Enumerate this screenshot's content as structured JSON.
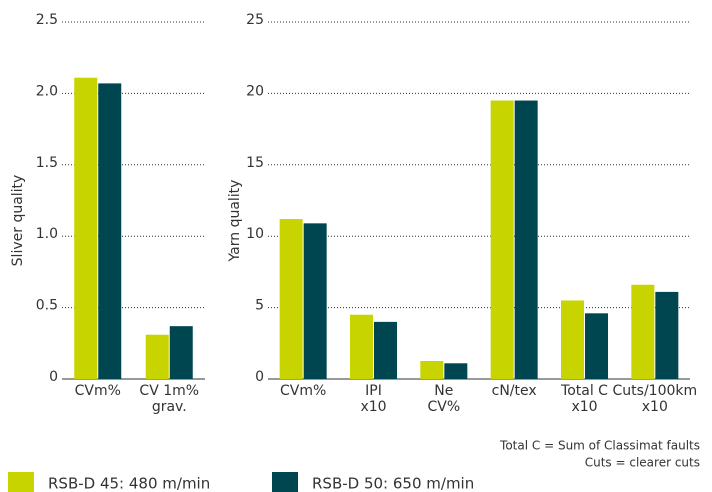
{
  "chart_data": [
    {
      "type": "bar",
      "ylabel": "Sliver quality",
      "categories": [
        "CVm%",
        "CV 1m%\ngrav."
      ],
      "series": [
        {
          "name": "RSB-D 45: 480 m/min",
          "color": "#c8d400",
          "values": [
            2.11,
            0.31
          ]
        },
        {
          "name": "RSB-D 50: 650 m/min",
          "color": "#004650",
          "values": [
            2.07,
            0.37
          ]
        }
      ],
      "ylim": [
        0,
        2.5
      ],
      "yticks": [
        0,
        0.5,
        {
          "value": 1,
          "label": "1.0"
        },
        1.5,
        {
          "value": 2,
          "label": "2.0"
        },
        2.5
      ],
      "grid": true
    },
    {
      "type": "bar",
      "ylabel": "Yarn quality",
      "categories": [
        "CVm%",
        "IPI\nx10",
        "Ne\nCV%",
        "cN/tex",
        "Total C\nx10",
        "Cuts/100km\nx10"
      ],
      "series": [
        {
          "color": "#c8d400",
          "values": [
            11.2,
            4.5,
            1.26,
            19.5,
            5.5,
            6.6
          ]
        },
        {
          "color": "#004650",
          "values": [
            10.9,
            4.0,
            1.1,
            19.5,
            4.6,
            6.1
          ]
        }
      ],
      "ylim": [
        0,
        25
      ],
      "yticks": [
        0,
        5,
        10,
        15,
        20,
        25
      ],
      "grid": true,
      "annotations": [
        "Total C = Sum of Classimat faults",
        "Cuts = clearer cuts"
      ]
    }
  ]
}
